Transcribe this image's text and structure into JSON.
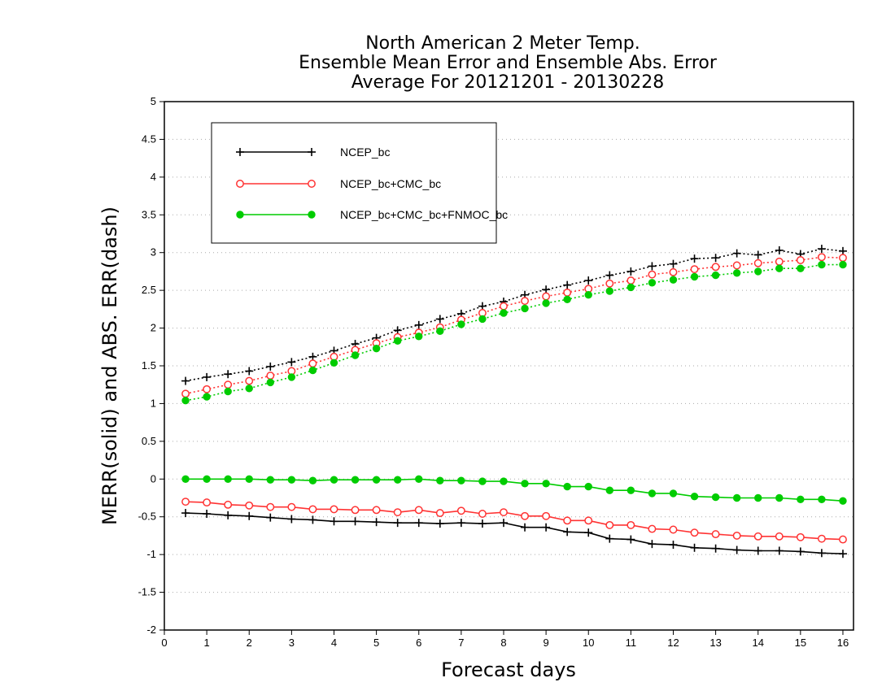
{
  "chart_data": {
    "type": "line",
    "title_lines": [
      "North American 2 Meter Temp.",
      "Ensemble Mean Error and Ensemble Abs. Error",
      "Average For 20121201 - 20130228"
    ],
    "xlabel": "Forecast days",
    "ylabel": "MERR(solid) and ABS. ERR(dash)",
    "xlim": [
      0,
      16.25
    ],
    "ylim": [
      -2,
      5
    ],
    "x_ticks": [
      0,
      1,
      2,
      3,
      4,
      5,
      6,
      7,
      8,
      9,
      10,
      11,
      12,
      13,
      14,
      15,
      16
    ],
    "y_ticks": [
      -2,
      -1.5,
      -1,
      -0.5,
      0,
      0.5,
      1,
      1.5,
      2,
      2.5,
      3,
      3.5,
      4,
      4.5,
      5
    ],
    "grid": true,
    "legend_position": "top-left",
    "x": [
      0.5,
      1,
      1.5,
      2,
      2.5,
      3,
      3.5,
      4,
      4.5,
      5,
      5.5,
      6,
      6.5,
      7,
      7.5,
      8,
      8.5,
      9,
      9.5,
      10,
      10.5,
      11,
      11.5,
      12,
      12.5,
      13,
      13.5,
      14,
      14.5,
      15,
      15.5,
      16
    ],
    "series": [
      {
        "name": "NCEP_bc",
        "color": "#000000",
        "marker": "plus",
        "abs_err": [
          1.3,
          1.35,
          1.39,
          1.43,
          1.49,
          1.55,
          1.62,
          1.7,
          1.79,
          1.87,
          1.97,
          2.04,
          2.12,
          2.19,
          2.29,
          2.35,
          2.44,
          2.51,
          2.57,
          2.63,
          2.7,
          2.75,
          2.82,
          2.85,
          2.92,
          2.93,
          2.99,
          2.97,
          3.03,
          2.98,
          3.05,
          3.02
        ],
        "mean_err": [
          -0.45,
          -0.46,
          -0.48,
          -0.49,
          -0.51,
          -0.53,
          -0.54,
          -0.56,
          -0.56,
          -0.57,
          -0.58,
          -0.58,
          -0.59,
          -0.58,
          -0.59,
          -0.58,
          -0.64,
          -0.64,
          -0.7,
          -0.71,
          -0.79,
          -0.8,
          -0.86,
          -0.87,
          -0.91,
          -0.92,
          -0.94,
          -0.95,
          -0.95,
          -0.96,
          -0.98,
          -0.99
        ]
      },
      {
        "name": "NCEP_bc+CMC_bc",
        "color": "#ff3333",
        "marker": "open-circle",
        "abs_err": [
          1.13,
          1.19,
          1.25,
          1.3,
          1.37,
          1.43,
          1.53,
          1.62,
          1.71,
          1.8,
          1.88,
          1.94,
          2.01,
          2.11,
          2.2,
          2.29,
          2.36,
          2.42,
          2.47,
          2.52,
          2.59,
          2.63,
          2.71,
          2.74,
          2.78,
          2.81,
          2.83,
          2.86,
          2.88,
          2.9,
          2.94,
          2.93
        ],
        "mean_err": [
          -0.3,
          -0.31,
          -0.34,
          -0.35,
          -0.37,
          -0.37,
          -0.4,
          -0.4,
          -0.41,
          -0.41,
          -0.44,
          -0.41,
          -0.45,
          -0.42,
          -0.46,
          -0.44,
          -0.49,
          -0.49,
          -0.55,
          -0.55,
          -0.61,
          -0.61,
          -0.66,
          -0.67,
          -0.71,
          -0.73,
          -0.75,
          -0.76,
          -0.76,
          -0.77,
          -0.79,
          -0.8
        ]
      },
      {
        "name": "NCEP_bc+CMC_bc+FNMOC_bc",
        "color": "#00cc00",
        "marker": "filled-circle",
        "abs_err": [
          1.04,
          1.09,
          1.16,
          1.2,
          1.28,
          1.35,
          1.44,
          1.54,
          1.64,
          1.73,
          1.83,
          1.89,
          1.96,
          2.05,
          2.12,
          2.2,
          2.26,
          2.33,
          2.38,
          2.44,
          2.49,
          2.54,
          2.6,
          2.64,
          2.68,
          2.7,
          2.73,
          2.75,
          2.79,
          2.79,
          2.84,
          2.84
        ],
        "mean_err": [
          0.0,
          0.0,
          0.0,
          0.0,
          -0.01,
          -0.01,
          -0.02,
          -0.01,
          -0.01,
          -0.01,
          -0.01,
          0.0,
          -0.02,
          -0.02,
          -0.03,
          -0.03,
          -0.06,
          -0.06,
          -0.1,
          -0.1,
          -0.15,
          -0.15,
          -0.19,
          -0.19,
          -0.23,
          -0.24,
          -0.25,
          -0.25,
          -0.25,
          -0.27,
          -0.27,
          -0.29
        ]
      }
    ]
  }
}
